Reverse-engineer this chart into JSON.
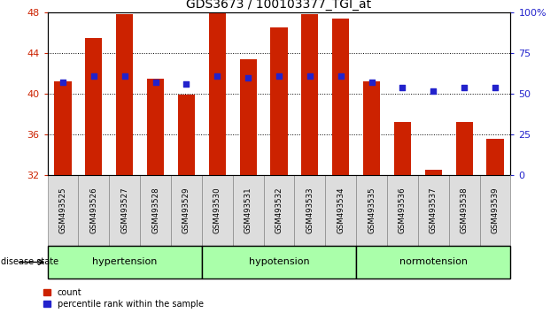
{
  "title": "GDS3673 / 100103377_TGI_at",
  "samples": [
    "GSM493525",
    "GSM493526",
    "GSM493527",
    "GSM493528",
    "GSM493529",
    "GSM493530",
    "GSM493531",
    "GSM493532",
    "GSM493533",
    "GSM493534",
    "GSM493535",
    "GSM493536",
    "GSM493537",
    "GSM493538",
    "GSM493539"
  ],
  "count_values": [
    41.2,
    45.5,
    47.8,
    41.5,
    39.9,
    48.0,
    43.4,
    46.5,
    47.8,
    47.4,
    41.2,
    37.2,
    32.5,
    37.2,
    35.6
  ],
  "percentile_values": [
    57,
    61,
    61,
    57,
    56,
    61,
    60,
    61,
    61,
    61,
    57,
    54,
    52,
    54,
    54
  ],
  "ymin": 32,
  "ymax": 48,
  "yticks_left": [
    32,
    36,
    40,
    44,
    48
  ],
  "yticks_right": [
    0,
    25,
    50,
    75,
    100
  ],
  "bar_color": "#cc2200",
  "dot_color": "#2222cc",
  "groups": [
    {
      "label": "hypertension",
      "start": 0,
      "end": 5,
      "color": "#aaffaa"
    },
    {
      "label": "hypotension",
      "start": 5,
      "end": 10,
      "color": "#aaffaa"
    },
    {
      "label": "normotension",
      "start": 10,
      "end": 15,
      "color": "#aaffaa"
    }
  ],
  "bar_width": 0.55,
  "legend_items": [
    {
      "label": "count",
      "color": "#cc2200"
    },
    {
      "label": "percentile rank within the sample",
      "color": "#2222cc"
    }
  ],
  "background_color": "#ffffff",
  "plot_bg_color": "#ffffff",
  "title_fontsize": 10
}
